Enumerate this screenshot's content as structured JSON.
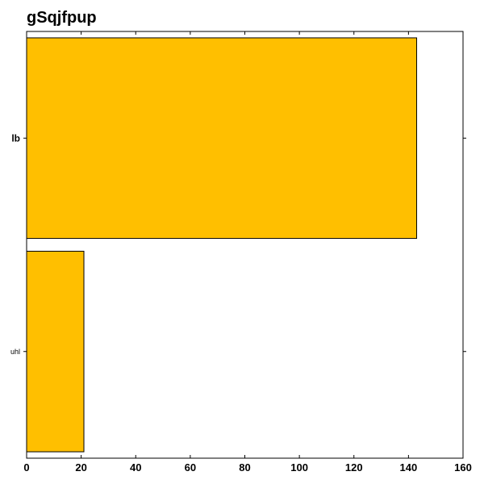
{
  "chart_data": {
    "type": "bar",
    "orientation": "horizontal",
    "title": "gSqjfpup",
    "categories": [
      "lb",
      "uhl"
    ],
    "values": [
      143,
      21
    ],
    "xlabel": "",
    "ylabel": "",
    "xlim": [
      0,
      160
    ],
    "xticks": [
      0,
      20,
      40,
      60,
      80,
      100,
      120,
      140,
      160
    ],
    "grid": false,
    "legend": "none",
    "bar_color": "#ffbf00",
    "bar_edge_color": "#000000"
  }
}
